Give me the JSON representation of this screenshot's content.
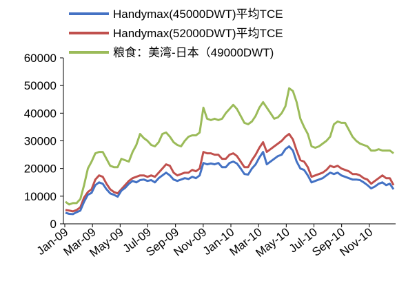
{
  "chart_data": {
    "type": "line",
    "title": "",
    "xlabel": "",
    "ylabel": "",
    "ylim": [
      0,
      60000
    ],
    "yticks": [
      0,
      10000,
      20000,
      30000,
      40000,
      50000,
      60000
    ],
    "ytick_labels": [
      "0",
      "10000",
      "20000",
      "30000",
      "40000",
      "50000",
      "60000"
    ],
    "xtick_labels": [
      "Jan-09",
      "Mar-09",
      "May-09",
      "Jul-09",
      "Sep-09",
      "Nov-09",
      "Jan-10",
      "Mar-10",
      "May-10",
      "Jul-10",
      "Sep-10",
      "Nov-10"
    ],
    "grid": false,
    "legend_position": "top",
    "series": [
      {
        "name": "Handymax(45000DWT)平均TCE",
        "color": "#4472C4",
        "values": [
          4000,
          3600,
          3500,
          4200,
          4800,
          8000,
          10500,
          11200,
          14000,
          15000,
          14500,
          12500,
          11000,
          10500,
          9800,
          12000,
          13000,
          14500,
          15500,
          15000,
          15800,
          16000,
          15500,
          15800,
          15000,
          16500,
          17500,
          18500,
          17500,
          16000,
          15500,
          16000,
          16500,
          16200,
          17000,
          16500,
          17500,
          22000,
          21500,
          21800,
          21500,
          22000,
          20500,
          20500,
          22000,
          22500,
          21800,
          20000,
          18000,
          17800,
          20000,
          21500,
          24000,
          26000,
          21500,
          22500,
          23500,
          24500,
          25000,
          27000,
          28000,
          26500,
          22500,
          20000,
          19500,
          17500,
          15000,
          15500,
          16000,
          16500,
          17500,
          18500,
          18000,
          18500,
          17500,
          17000,
          16500,
          16000,
          16000,
          15800,
          15000,
          14000,
          12800,
          13500,
          14500,
          15000,
          14000,
          14500,
          12500
        ]
      },
      {
        "name": "Handymax(52000DWT)平均TCE",
        "color": "#C0504D",
        "values": [
          5000,
          4800,
          4500,
          5000,
          6000,
          9500,
          11500,
          12500,
          16000,
          17500,
          17000,
          14500,
          12500,
          11500,
          11000,
          12500,
          14000,
          15500,
          16500,
          17000,
          17500,
          17500,
          17000,
          17500,
          17000,
          18500,
          20000,
          21500,
          21000,
          18500,
          17500,
          18000,
          18500,
          18500,
          19500,
          19000,
          20000,
          26000,
          25500,
          25500,
          25000,
          25000,
          23500,
          23500,
          25000,
          25500,
          24500,
          22500,
          20500,
          20500,
          23000,
          25000,
          27500,
          29500,
          26000,
          27000,
          28000,
          29000,
          30000,
          31500,
          32500,
          30500,
          26500,
          23000,
          22500,
          20500,
          17000,
          17500,
          18000,
          18500,
          19500,
          21000,
          20500,
          21000,
          20000,
          19500,
          19000,
          18000,
          18000,
          17500,
          16500,
          16000,
          14500,
          15500,
          16500,
          17500,
          16500,
          16500,
          14000
        ]
      },
      {
        "name": "粮食：美湾-日本（49000DWT)",
        "color": "#9BBB59",
        "values": [
          8000,
          7000,
          7500,
          7500,
          9000,
          14000,
          20000,
          22500,
          25500,
          26000,
          26000,
          23500,
          21000,
          20500,
          20500,
          23500,
          23000,
          22500,
          26000,
          28500,
          32500,
          31000,
          30000,
          28500,
          28000,
          29500,
          32500,
          33000,
          31500,
          29500,
          28500,
          28000,
          30000,
          31500,
          32000,
          32000,
          33000,
          42000,
          38000,
          37500,
          38000,
          37500,
          38000,
          40000,
          41500,
          43000,
          41500,
          39000,
          36500,
          36000,
          37000,
          39000,
          42000,
          44000,
          42000,
          40000,
          38000,
          38500,
          40000,
          42500,
          49000,
          48000,
          44000,
          38000,
          35000,
          32500,
          28000,
          27500,
          28000,
          29000,
          30000,
          31500,
          36000,
          37000,
          36500,
          36500,
          34000,
          31500,
          30000,
          29000,
          28500,
          28000,
          26500,
          26500,
          27000,
          26500,
          26500,
          26500,
          25500
        ]
      }
    ]
  }
}
